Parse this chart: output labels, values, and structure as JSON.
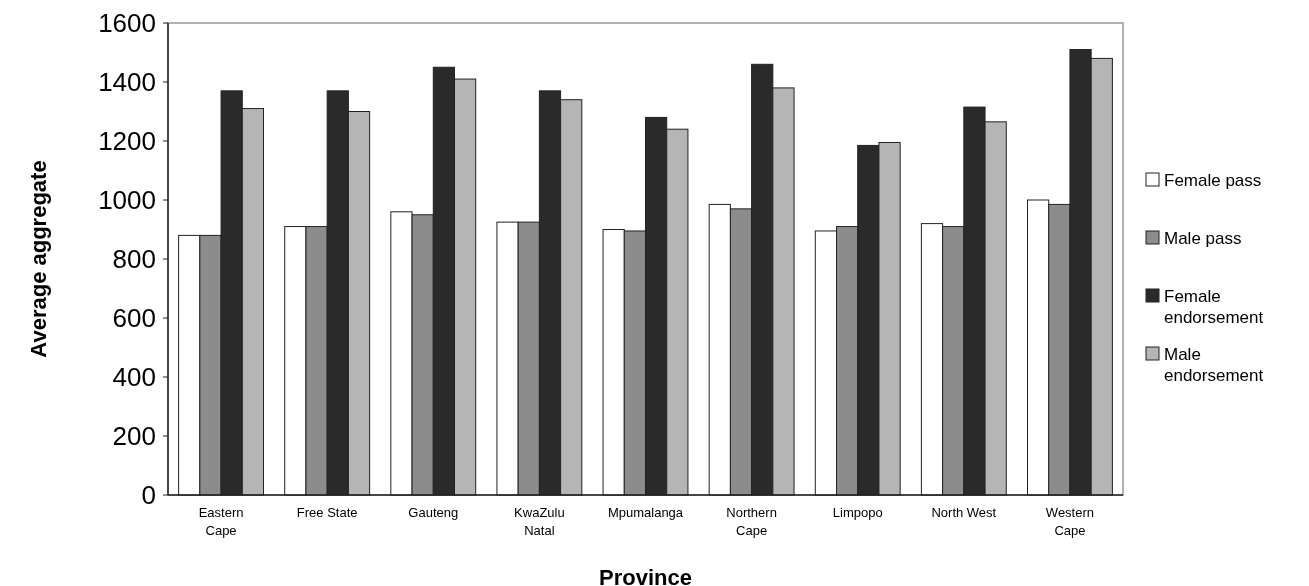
{
  "chart_data": {
    "type": "bar",
    "xlabel": "Province",
    "ylabel": "Average aggregate",
    "categories": [
      "Eastern Cape",
      "Free State",
      "Gauteng",
      "KwaZulu Natal",
      "Mpumalanga",
      "Northern Cape",
      "Limpopo",
      "North West",
      "Western Cape"
    ],
    "series": [
      {
        "name": "Female pass",
        "color": "#ffffff",
        "values": [
          880,
          910,
          960,
          925,
          900,
          985,
          895,
          920,
          1000
        ]
      },
      {
        "name": "Male pass",
        "color": "#8c8c8c",
        "values": [
          880,
          910,
          950,
          925,
          895,
          970,
          910,
          910,
          985
        ]
      },
      {
        "name": "Female endorsement",
        "color": "#2a2a2a",
        "values": [
          1370,
          1370,
          1450,
          1370,
          1280,
          1460,
          1185,
          1315,
          1510
        ]
      },
      {
        "name": "Male endorsement",
        "color": "#b5b5b5",
        "values": [
          1310,
          1300,
          1410,
          1340,
          1240,
          1380,
          1195,
          1265,
          1480
        ]
      }
    ],
    "ylim": [
      0,
      1600
    ],
    "yticks": [
      0,
      200,
      400,
      600,
      800,
      1000,
      1200,
      1400,
      1600
    ],
    "grid": false,
    "legend": "right"
  }
}
